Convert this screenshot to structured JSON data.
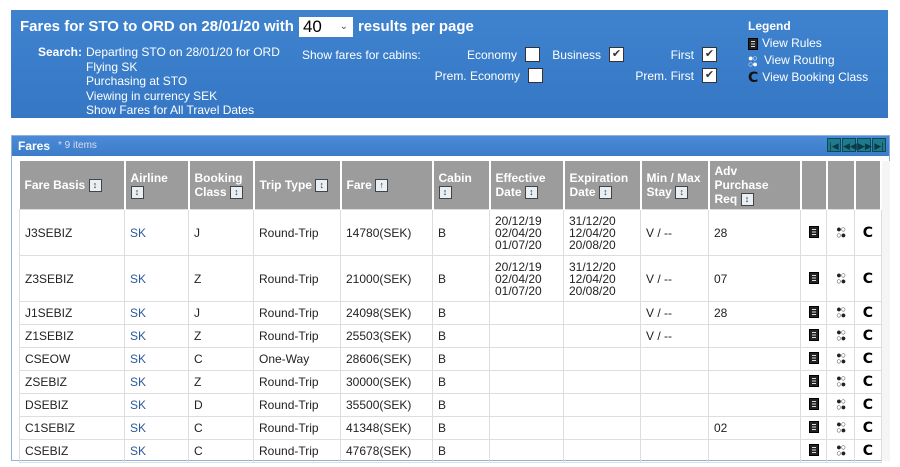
{
  "header": {
    "title_prefix": "Fares for STO to ORD on 28/01/20 with",
    "per_page": "40",
    "title_suffix": "results per page",
    "search_label": "Search:",
    "search_lines": [
      "Departing STO on 28/01/20 for ORD",
      "Flying SK",
      "Purchasing at STO",
      "Viewing in currency SEK",
      "Show Fares for All Travel Dates"
    ],
    "cabins_label": "Show fares for cabins:",
    "cabins": [
      {
        "label": "Economy",
        "checked": false
      },
      {
        "label": "Business",
        "checked": true
      },
      {
        "label": "First",
        "checked": true
      },
      {
        "label": "Prem. Economy",
        "checked": false
      },
      {
        "label": "Prem. First",
        "checked": true
      }
    ]
  },
  "legend": {
    "title": "Legend",
    "rules": "View Rules",
    "routing": "View Routing",
    "booking": "View Booking Class"
  },
  "panel": {
    "title": "Fares",
    "count": "* 9 items",
    "pager": [
      "first",
      "prev",
      "next",
      "last"
    ]
  },
  "columns": [
    "Fare Basis",
    "Airline",
    "Booking Class",
    "Trip Type",
    "Fare",
    "Cabin",
    "Effective Date",
    "Expiration Date",
    "Min / Max Stay",
    "Adv Purchase Req"
  ],
  "sorted_column": "Fare",
  "rows": [
    [
      "J3SEBIZ",
      "SK",
      "J",
      "Round-Trip",
      "14780(SEK)",
      "B",
      "20/12/19\n02/04/20\n01/07/20",
      "31/12/20\n12/04/20\n20/08/20",
      "V / --",
      "28"
    ],
    [
      "Z3SEBIZ",
      "SK",
      "Z",
      "Round-Trip",
      "21000(SEK)",
      "B",
      "20/12/19\n02/04/20\n01/07/20",
      "31/12/20\n12/04/20\n20/08/20",
      "V / --",
      "07"
    ],
    [
      "J1SEBIZ",
      "SK",
      "J",
      "Round-Trip",
      "24098(SEK)",
      "B",
      "",
      "",
      "V / --",
      "28"
    ],
    [
      "Z1SEBIZ",
      "SK",
      "Z",
      "Round-Trip",
      "25503(SEK)",
      "B",
      "",
      "",
      "V / --",
      ""
    ],
    [
      "CSEOW",
      "SK",
      "C",
      "One-Way",
      "28606(SEK)",
      "B",
      "",
      "",
      "",
      ""
    ],
    [
      "ZSEBIZ",
      "SK",
      "Z",
      "Round-Trip",
      "30000(SEK)",
      "B",
      "",
      "",
      "",
      ""
    ],
    [
      "DSEBIZ",
      "SK",
      "D",
      "Round-Trip",
      "35500(SEK)",
      "B",
      "",
      "",
      "",
      ""
    ],
    [
      "C1SEBIZ",
      "SK",
      "C",
      "Round-Trip",
      "41348(SEK)",
      "B",
      "",
      "",
      "",
      "02"
    ],
    [
      "CSEBIZ",
      "SK",
      "C",
      "Round-Trip",
      "47678(SEK)",
      "B",
      "",
      "",
      "",
      ""
    ]
  ]
}
